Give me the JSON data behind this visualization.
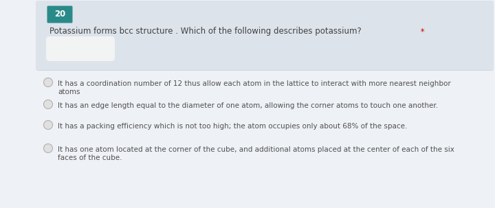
{
  "bg_color": "#eef1f5",
  "header_bg": "#dde3eb",
  "number_box_color": "#2a8a8a",
  "number_box_text": "20",
  "number_box_text_color": "#ffffff",
  "question_text": "Potassium forms bcc structure . Which of the following describes potassium?",
  "asterisk": " *",
  "asterisk_color": "#cc0000",
  "question_text_color": "#404040",
  "question_fontsize": 8.5,
  "options": [
    [
      "It has a coordination number of 12 thus allow each atom in the lattice to interact with more nearest neighbor",
      "atoms"
    ],
    [
      "It has an edge length equal to the diameter of one atom, allowing the corner atoms to touch one another."
    ],
    [
      "It has a packing efficiency which is not too high; the atom occupies only about 68% of the space."
    ],
    [
      "It has one atom located at the corner of the cube, and additional atoms placed at the center of each of the six",
      "faces of the cube."
    ]
  ],
  "option_text_color": "#505050",
  "option_fontsize": 7.5,
  "radio_face_color": "#e0e0e0",
  "radio_edge_color": "#b0b0b0",
  "white_blob_color": "#f5f5f5",
  "header_border_color": "#c8d0d8"
}
